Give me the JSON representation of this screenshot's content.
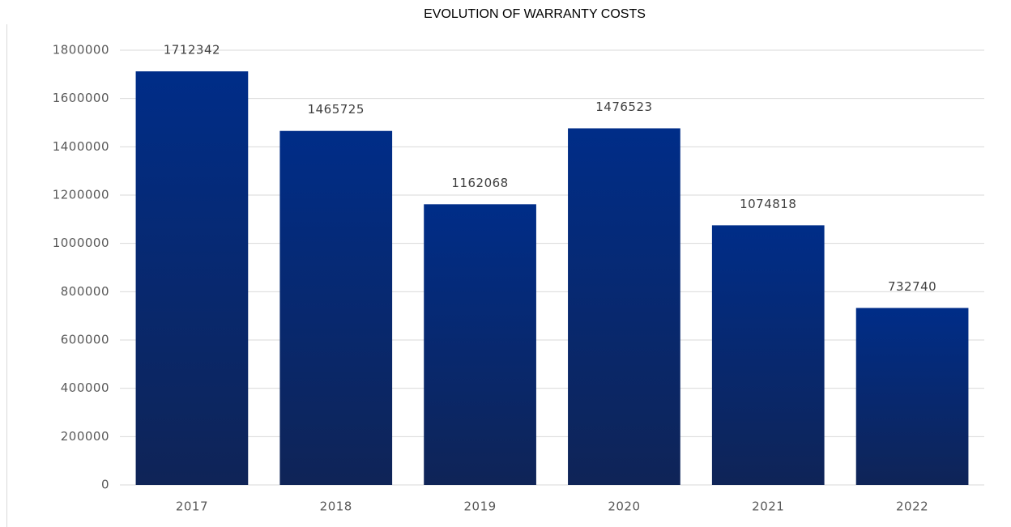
{
  "chart_data": {
    "type": "bar",
    "title": "EVOLUTION OF WARRANTY COSTS",
    "categories": [
      "2017",
      "2018",
      "2019",
      "2020",
      "2021",
      "2022"
    ],
    "values": [
      1712342,
      1465725,
      1162068,
      1476523,
      1074818,
      732740
    ],
    "color": "#002d88",
    "ylim": [
      0,
      1800000
    ],
    "yticks": [
      0,
      200000,
      400000,
      600000,
      800000,
      1000000,
      1200000,
      1400000,
      1600000,
      1800000
    ],
    "grid": true
  }
}
